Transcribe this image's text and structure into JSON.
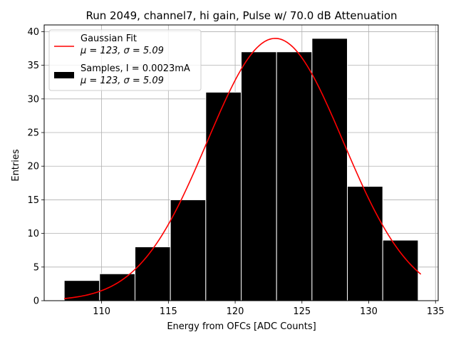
{
  "chart_data": {
    "type": "bar",
    "title": "Run 2049, channel7, hi gain, Pulse w/ 70.0 dB Attenuation",
    "xlabel": "Energy from OFCs [ADC Counts]",
    "ylabel": "Entries",
    "xlim": [
      105.7,
      135.2
    ],
    "ylim": [
      0,
      41
    ],
    "xticks": [
      110,
      115,
      120,
      125,
      130,
      135
    ],
    "yticks": [
      0,
      5,
      10,
      15,
      20,
      25,
      30,
      35,
      40
    ],
    "grid": true,
    "legend_position": "top-left",
    "bins": {
      "edges": [
        107.2,
        109.85,
        112.5,
        115.15,
        117.8,
        120.45,
        123.1,
        125.75,
        128.4,
        131.05,
        133.7
      ],
      "counts": [
        3,
        4,
        8,
        15,
        31,
        37,
        37,
        39,
        17,
        9
      ],
      "color": "#000000",
      "edge_color": "#ffffff"
    },
    "fit": {
      "type": "gaussian",
      "mu": 123,
      "sigma": 5.09,
      "amplitude": 39,
      "x_range": [
        107.2,
        133.9
      ],
      "color": "#ff0000"
    },
    "legend": [
      {
        "label_line1": "Gaussian Fit",
        "mu_text": "μ = 123, ",
        "sigma_text": "σ = 5.09",
        "marker": "line",
        "color": "#ff0000"
      },
      {
        "label_line1": "Samples, I = 0.0023mA",
        "mu_text": "μ = 123, ",
        "sigma_text": "σ = 5.09",
        "marker": "patch",
        "color": "#000000"
      }
    ]
  }
}
